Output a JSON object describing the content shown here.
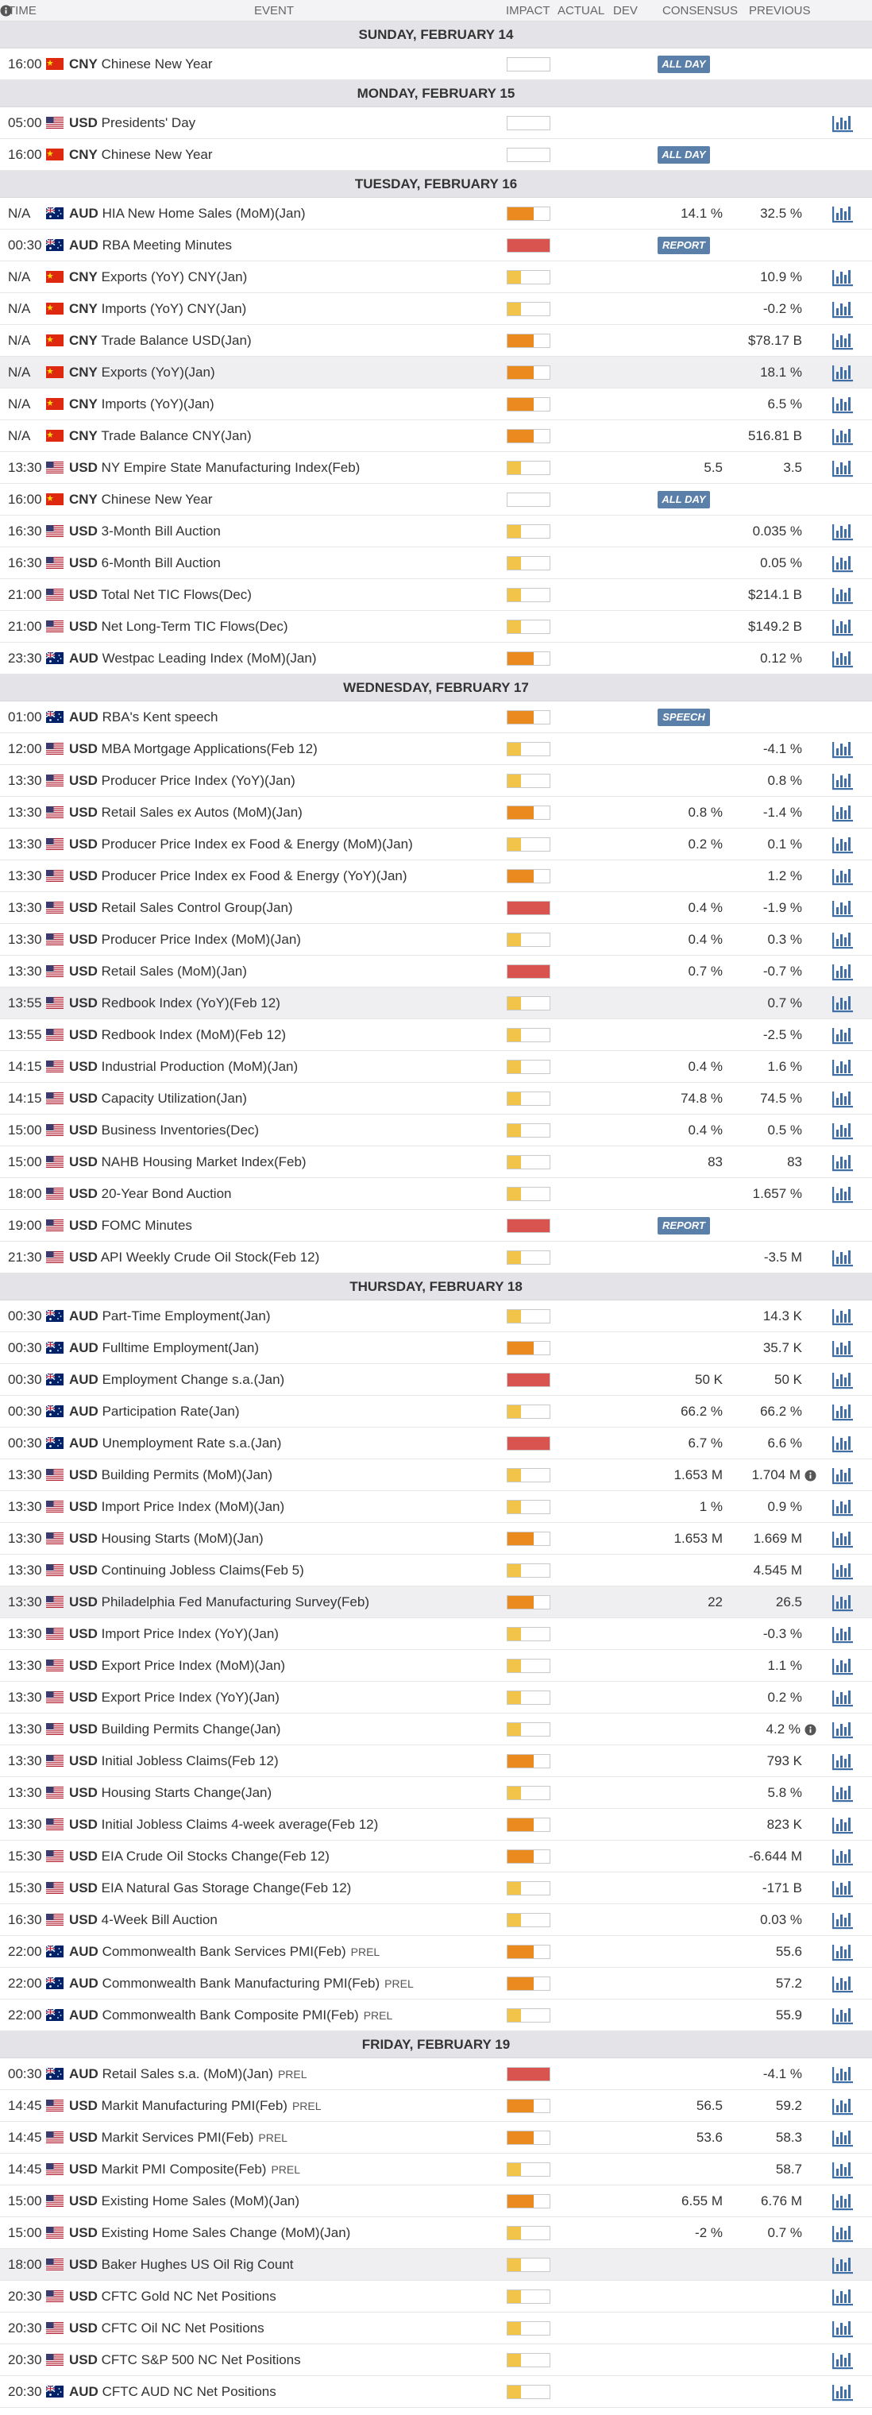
{
  "header": {
    "columns": [
      "TIME",
      "EVENT",
      "IMPACT",
      "ACTUAL",
      "DEV",
      "CONSENSUS",
      "PREVIOUS"
    ]
  },
  "days": [
    {
      "title": "SUNDAY, FEBRUARY 14",
      "events": [
        {
          "time": "16:00",
          "currency": "CNY",
          "event": "Chinese New Year",
          "impact": "none",
          "badge": "ALL DAY",
          "chart": false
        }
      ]
    },
    {
      "title": "MONDAY, FEBRUARY 15",
      "events": [
        {
          "time": "05:00",
          "currency": "USD",
          "event": "Presidents' Day",
          "impact": "none",
          "chart": true
        },
        {
          "time": "16:00",
          "currency": "CNY",
          "event": "Chinese New Year",
          "impact": "none",
          "badge": "ALL DAY",
          "chart": false
        }
      ]
    },
    {
      "title": "TUESDAY, FEBRUARY 16",
      "events": [
        {
          "time": "N/A",
          "currency": "AUD",
          "event": "HIA New Home Sales (MoM)(Jan)",
          "impact": "medium",
          "consensus": "14.1 %",
          "previous": "32.5 %",
          "chart": true
        },
        {
          "time": "00:30",
          "currency": "AUD",
          "event": "RBA Meeting Minutes",
          "impact": "high",
          "badge": "REPORT",
          "chart": false
        },
        {
          "time": "N/A",
          "currency": "CNY",
          "event": "Exports (YoY) CNY(Jan)",
          "impact": "low",
          "previous": "10.9 %",
          "chart": true
        },
        {
          "time": "N/A",
          "currency": "CNY",
          "event": "Imports (YoY) CNY(Jan)",
          "impact": "low",
          "previous": "-0.2 %",
          "chart": true
        },
        {
          "time": "N/A",
          "currency": "CNY",
          "event": "Trade Balance USD(Jan)",
          "impact": "medium",
          "previous": "$78.17 B",
          "chart": true
        },
        {
          "time": "N/A",
          "currency": "CNY",
          "event": "Exports (YoY)(Jan)",
          "impact": "medium",
          "previous": "18.1 %",
          "chart": true,
          "shaded": true
        },
        {
          "time": "N/A",
          "currency": "CNY",
          "event": "Imports (YoY)(Jan)",
          "impact": "medium",
          "previous": "6.5 %",
          "chart": true
        },
        {
          "time": "N/A",
          "currency": "CNY",
          "event": "Trade Balance CNY(Jan)",
          "impact": "medium",
          "previous": "516.81 B",
          "chart": true
        },
        {
          "time": "13:30",
          "currency": "USD",
          "event": "NY Empire State Manufacturing Index(Feb)",
          "impact": "low",
          "consensus": "5.5",
          "previous": "3.5",
          "chart": true
        },
        {
          "time": "16:00",
          "currency": "CNY",
          "event": "Chinese New Year",
          "impact": "none",
          "badge": "ALL DAY",
          "chart": false
        },
        {
          "time": "16:30",
          "currency": "USD",
          "event": "3-Month Bill Auction",
          "impact": "low",
          "previous": "0.035 %",
          "chart": true
        },
        {
          "time": "16:30",
          "currency": "USD",
          "event": "6-Month Bill Auction",
          "impact": "low",
          "previous": "0.05 %",
          "chart": true
        },
        {
          "time": "21:00",
          "currency": "USD",
          "event": "Total Net TIC Flows(Dec)",
          "impact": "low",
          "previous": "$214.1 B",
          "chart": true
        },
        {
          "time": "21:00",
          "currency": "USD",
          "event": "Net Long-Term TIC Flows(Dec)",
          "impact": "low",
          "previous": "$149.2 B",
          "chart": true
        },
        {
          "time": "23:30",
          "currency": "AUD",
          "event": "Westpac Leading Index (MoM)(Jan)",
          "impact": "medium",
          "previous": "0.12 %",
          "chart": true
        }
      ]
    },
    {
      "title": "WEDNESDAY, FEBRUARY 17",
      "events": [
        {
          "time": "01:00",
          "currency": "AUD",
          "event": "RBA's Kent speech",
          "impact": "medium",
          "badge": "SPEECH",
          "chart": false
        },
        {
          "time": "12:00",
          "currency": "USD",
          "event": "MBA Mortgage Applications(Feb 12)",
          "impact": "low",
          "previous": "-4.1 %",
          "chart": true
        },
        {
          "time": "13:30",
          "currency": "USD",
          "event": "Producer Price Index (YoY)(Jan)",
          "impact": "low",
          "previous": "0.8 %",
          "chart": true
        },
        {
          "time": "13:30",
          "currency": "USD",
          "event": "Retail Sales ex Autos (MoM)(Jan)",
          "impact": "medium",
          "consensus": "0.8 %",
          "previous": "-1.4 %",
          "chart": true
        },
        {
          "time": "13:30",
          "currency": "USD",
          "event": "Producer Price Index ex Food & Energy (MoM)(Jan)",
          "impact": "low",
          "consensus": "0.2 %",
          "previous": "0.1 %",
          "chart": true
        },
        {
          "time": "13:30",
          "currency": "USD",
          "event": "Producer Price Index ex Food & Energy (YoY)(Jan)",
          "impact": "medium",
          "previous": "1.2 %",
          "chart": true
        },
        {
          "time": "13:30",
          "currency": "USD",
          "event": "Retail Sales Control Group(Jan)",
          "impact": "high",
          "consensus": "0.4 %",
          "previous": "-1.9 %",
          "chart": true
        },
        {
          "time": "13:30",
          "currency": "USD",
          "event": "Producer Price Index (MoM)(Jan)",
          "impact": "low",
          "consensus": "0.4 %",
          "previous": "0.3 %",
          "chart": true
        },
        {
          "time": "13:30",
          "currency": "USD",
          "event": "Retail Sales (MoM)(Jan)",
          "impact": "high",
          "consensus": "0.7 %",
          "previous": "-0.7 %",
          "chart": true
        },
        {
          "time": "13:55",
          "currency": "USD",
          "event": "Redbook Index (YoY)(Feb 12)",
          "impact": "low",
          "previous": "0.7 %",
          "chart": true,
          "shaded": true
        },
        {
          "time": "13:55",
          "currency": "USD",
          "event": "Redbook Index (MoM)(Feb 12)",
          "impact": "low",
          "previous": "-2.5 %",
          "chart": true
        },
        {
          "time": "14:15",
          "currency": "USD",
          "event": "Industrial Production (MoM)(Jan)",
          "impact": "low",
          "consensus": "0.4 %",
          "previous": "1.6 %",
          "chart": true
        },
        {
          "time": "14:15",
          "currency": "USD",
          "event": "Capacity Utilization(Jan)",
          "impact": "low",
          "consensus": "74.8 %",
          "previous": "74.5 %",
          "chart": true
        },
        {
          "time": "15:00",
          "currency": "USD",
          "event": "Business Inventories(Dec)",
          "impact": "low",
          "consensus": "0.4 %",
          "previous": "0.5 %",
          "chart": true
        },
        {
          "time": "15:00",
          "currency": "USD",
          "event": "NAHB Housing Market Index(Feb)",
          "impact": "low",
          "consensus": "83",
          "previous": "83",
          "chart": true
        },
        {
          "time": "18:00",
          "currency": "USD",
          "event": "20-Year Bond Auction",
          "impact": "low",
          "previous": "1.657 %",
          "chart": true
        },
        {
          "time": "19:00",
          "currency": "USD",
          "event": "FOMC Minutes",
          "impact": "high",
          "badge": "REPORT",
          "chart": false
        },
        {
          "time": "21:30",
          "currency": "USD",
          "event": "API Weekly Crude Oil Stock(Feb 12)",
          "impact": "low",
          "previous": "-3.5 M",
          "chart": true
        }
      ]
    },
    {
      "title": "THURSDAY, FEBRUARY 18",
      "events": [
        {
          "time": "00:30",
          "currency": "AUD",
          "event": "Part-Time Employment(Jan)",
          "impact": "low",
          "previous": "14.3 K",
          "chart": true
        },
        {
          "time": "00:30",
          "currency": "AUD",
          "event": "Fulltime Employment(Jan)",
          "impact": "medium",
          "previous": "35.7 K",
          "chart": true
        },
        {
          "time": "00:30",
          "currency": "AUD",
          "event": "Employment Change s.a.(Jan)",
          "impact": "high",
          "consensus": "50 K",
          "previous": "50 K",
          "chart": true
        },
        {
          "time": "00:30",
          "currency": "AUD",
          "event": "Participation Rate(Jan)",
          "impact": "low",
          "consensus": "66.2 %",
          "previous": "66.2 %",
          "chart": true
        },
        {
          "time": "00:30",
          "currency": "AUD",
          "event": "Unemployment Rate s.a.(Jan)",
          "impact": "high",
          "consensus": "6.7 %",
          "previous": "6.6 %",
          "chart": true
        },
        {
          "time": "13:30",
          "currency": "USD",
          "event": "Building Permits (MoM)(Jan)",
          "impact": "low",
          "consensus": "1.653 M",
          "previous": "1.704 M",
          "info": true,
          "chart": true
        },
        {
          "time": "13:30",
          "currency": "USD",
          "event": "Import Price Index (MoM)(Jan)",
          "impact": "low",
          "consensus": "1 %",
          "previous": "0.9 %",
          "chart": true
        },
        {
          "time": "13:30",
          "currency": "USD",
          "event": "Housing Starts (MoM)(Jan)",
          "impact": "medium",
          "consensus": "1.653 M",
          "previous": "1.669 M",
          "chart": true
        },
        {
          "time": "13:30",
          "currency": "USD",
          "event": "Continuing Jobless Claims(Feb 5)",
          "impact": "low",
          "previous": "4.545 M",
          "chart": true
        },
        {
          "time": "13:30",
          "currency": "USD",
          "event": "Philadelphia Fed Manufacturing Survey(Feb)",
          "impact": "medium",
          "consensus": "22",
          "previous": "26.5",
          "chart": true,
          "shaded": true
        },
        {
          "time": "13:30",
          "currency": "USD",
          "event": "Import Price Index (YoY)(Jan)",
          "impact": "low",
          "previous": "-0.3 %",
          "chart": true
        },
        {
          "time": "13:30",
          "currency": "USD",
          "event": "Export Price Index (MoM)(Jan)",
          "impact": "low",
          "previous": "1.1 %",
          "chart": true
        },
        {
          "time": "13:30",
          "currency": "USD",
          "event": "Export Price Index (YoY)(Jan)",
          "impact": "low",
          "previous": "0.2 %",
          "chart": true
        },
        {
          "time": "13:30",
          "currency": "USD",
          "event": "Building Permits Change(Jan)",
          "impact": "low",
          "previous": "4.2 %",
          "info": true,
          "chart": true
        },
        {
          "time": "13:30",
          "currency": "USD",
          "event": "Initial Jobless Claims(Feb 12)",
          "impact": "medium",
          "previous": "793 K",
          "chart": true
        },
        {
          "time": "13:30",
          "currency": "USD",
          "event": "Housing Starts Change(Jan)",
          "impact": "low",
          "previous": "5.8 %",
          "chart": true
        },
        {
          "time": "13:30",
          "currency": "USD",
          "event": "Initial Jobless Claims 4-week average(Feb 12)",
          "impact": "medium",
          "previous": "823 K",
          "chart": true
        },
        {
          "time": "15:30",
          "currency": "USD",
          "event": "EIA Crude Oil Stocks Change(Feb 12)",
          "impact": "medium",
          "previous": "-6.644 M",
          "chart": true
        },
        {
          "time": "15:30",
          "currency": "USD",
          "event": "EIA Natural Gas Storage Change(Feb 12)",
          "impact": "low",
          "previous": "-171 B",
          "chart": true
        },
        {
          "time": "16:30",
          "currency": "USD",
          "event": "4-Week Bill Auction",
          "impact": "low",
          "previous": "0.03 %",
          "chart": true
        },
        {
          "time": "22:00",
          "currency": "AUD",
          "event": "Commonwealth Bank Services PMI(Feb)",
          "suffix": "PREL",
          "impact": "medium",
          "previous": "55.6",
          "chart": true
        },
        {
          "time": "22:00",
          "currency": "AUD",
          "event": "Commonwealth Bank Manufacturing PMI(Feb)",
          "suffix": "PREL",
          "impact": "medium",
          "previous": "57.2",
          "chart": true
        },
        {
          "time": "22:00",
          "currency": "AUD",
          "event": "Commonwealth Bank Composite PMI(Feb)",
          "suffix": "PREL",
          "impact": "low",
          "previous": "55.9",
          "chart": true
        }
      ]
    },
    {
      "title": "FRIDAY, FEBRUARY 19",
      "events": [
        {
          "time": "00:30",
          "currency": "AUD",
          "event": "Retail Sales s.a. (MoM)(Jan)",
          "suffix": "PREL",
          "impact": "high",
          "previous": "-4.1 %",
          "chart": true
        },
        {
          "time": "14:45",
          "currency": "USD",
          "event": "Markit Manufacturing PMI(Feb)",
          "suffix": "PREL",
          "impact": "medium",
          "consensus": "56.5",
          "previous": "59.2",
          "chart": true
        },
        {
          "time": "14:45",
          "currency": "USD",
          "event": "Markit Services PMI(Feb)",
          "suffix": "PREL",
          "impact": "medium",
          "consensus": "53.6",
          "previous": "58.3",
          "chart": true
        },
        {
          "time": "14:45",
          "currency": "USD",
          "event": "Markit PMI Composite(Feb)",
          "suffix": "PREL",
          "impact": "low",
          "previous": "58.7",
          "chart": true
        },
        {
          "time": "15:00",
          "currency": "USD",
          "event": "Existing Home Sales (MoM)(Jan)",
          "impact": "medium",
          "consensus": "6.55 M",
          "previous": "6.76 M",
          "chart": true
        },
        {
          "time": "15:00",
          "currency": "USD",
          "event": "Existing Home Sales Change (MoM)(Jan)",
          "impact": "low",
          "consensus": "-2 %",
          "previous": "0.7 %",
          "chart": true
        },
        {
          "time": "18:00",
          "currency": "USD",
          "event": "Baker Hughes US Oil Rig Count",
          "impact": "low",
          "chart": true,
          "shaded": true
        },
        {
          "time": "20:30",
          "currency": "USD",
          "event": "CFTC Gold NC Net Positions",
          "impact": "low",
          "chart": true
        },
        {
          "time": "20:30",
          "currency": "USD",
          "event": "CFTC Oil NC Net Positions",
          "impact": "low",
          "chart": true
        },
        {
          "time": "20:30",
          "currency": "USD",
          "event": "CFTC S&P 500 NC Net Positions",
          "impact": "low",
          "chart": true
        },
        {
          "time": "20:30",
          "currency": "AUD",
          "event": "CFTC AUD NC Net Positions",
          "impact": "low",
          "chart": true
        }
      ]
    }
  ]
}
